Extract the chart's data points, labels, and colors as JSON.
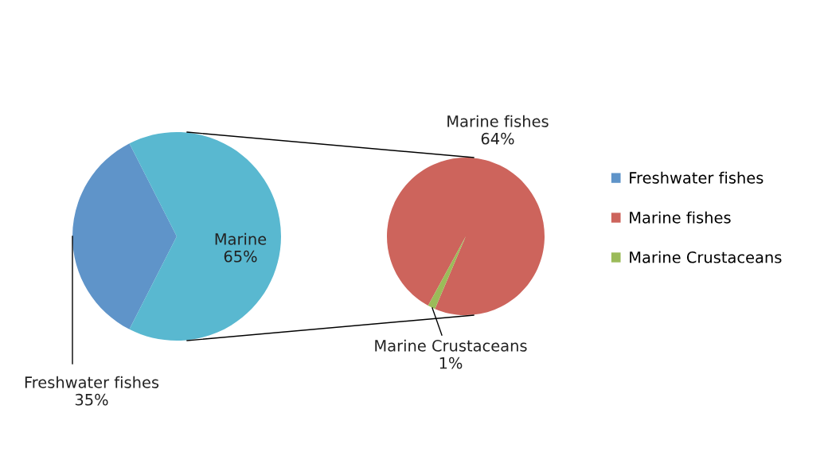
{
  "chart_data": [
    {
      "type": "pie",
      "categories": [
        "Freshwater fishes",
        "Marine"
      ],
      "values": [
        35,
        65
      ],
      "colors": [
        "#5f94c9",
        "#59b8d0"
      ],
      "value_labels": [
        "35%",
        "65%"
      ],
      "legend": "right"
    },
    {
      "type": "pie",
      "categories": [
        "Marine fishes",
        "Marine Crustaceans"
      ],
      "values": [
        64,
        1
      ],
      "colors": [
        "#cd645c",
        "#9bbb59"
      ],
      "value_labels": [
        "64%",
        "1%"
      ],
      "legend": "right"
    }
  ]
}
